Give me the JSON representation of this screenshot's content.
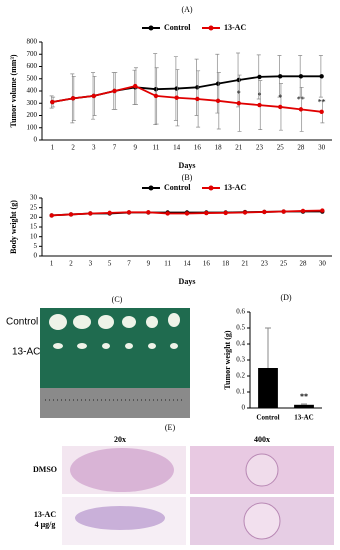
{
  "chart_data": [
    {
      "type": "line",
      "title": "(A)",
      "x_label": "Days",
      "y_label": "Tumor volume (mm³)",
      "legend": "top",
      "categories": [
        "1",
        "2",
        "3",
        "7",
        "9",
        "11",
        "14",
        "16",
        "18",
        "21",
        "23",
        "25",
        "28",
        "30"
      ],
      "series": [
        {
          "name": "Control",
          "color": "#000000",
          "values": [
            310,
            340,
            360,
            400,
            430,
            415,
            420,
            430,
            460,
            490,
            515,
            520,
            520,
            520
          ],
          "errors": [
            50,
            200,
            190,
            150,
            140,
            290,
            260,
            230,
            240,
            220,
            180,
            170,
            170,
            170
          ]
        },
        {
          "name": "13-AC",
          "color": "#e00000",
          "values": [
            310,
            340,
            360,
            400,
            440,
            360,
            345,
            335,
            320,
            300,
            285,
            270,
            250,
            230
          ],
          "errors": [
            40,
            180,
            160,
            150,
            150,
            230,
            230,
            230,
            230,
            230,
            200,
            190,
            180,
            90
          ]
        }
      ],
      "significance": [
        null,
        null,
        null,
        null,
        null,
        null,
        null,
        null,
        null,
        "*",
        "*",
        "*",
        "**",
        "**"
      ],
      "ylim": [
        0,
        800
      ],
      "yticks": [
        0,
        100,
        200,
        300,
        400,
        500,
        600,
        700,
        800
      ]
    },
    {
      "type": "line",
      "title": "(B)",
      "x_label": "Days",
      "y_label": "Body weight (g)",
      "legend": "top",
      "categories": [
        "1",
        "2",
        "3",
        "5",
        "7",
        "9",
        "11",
        "14",
        "16",
        "18",
        "21",
        "23",
        "25",
        "28",
        "30"
      ],
      "series": [
        {
          "name": "Control",
          "color": "#000000",
          "values": [
            21,
            21.5,
            22,
            22,
            22.5,
            22.5,
            22.5,
            22.5,
            22.5,
            22.5,
            22.7,
            22.8,
            23,
            23,
            23
          ]
        },
        {
          "name": "13-AC",
          "color": "#e00000",
          "values": [
            21,
            21.5,
            22,
            22.3,
            22.6,
            22.6,
            22,
            22,
            22.2,
            22.3,
            22.5,
            22.8,
            23,
            23.3,
            23.5
          ]
        }
      ],
      "ylim": [
        0,
        30
      ],
      "yticks": [
        0,
        5,
        10,
        15,
        20,
        25,
        30
      ]
    },
    {
      "type": "bar",
      "title": "(D)",
      "y_label": "Tumor weight (g)",
      "categories": [
        "Control",
        "13-AC"
      ],
      "values": [
        0.25,
        0.02
      ],
      "errors": [
        0.25,
        0.005
      ],
      "color": "#000000",
      "significance": [
        null,
        "**"
      ],
      "ylim": [
        0,
        0.6
      ],
      "yticks": [
        0,
        0.1,
        0.2,
        0.3,
        0.4,
        0.5,
        0.6
      ]
    }
  ],
  "photo": {
    "title": "(C)",
    "rows": [
      "Control",
      "13-AC"
    ]
  },
  "histology": {
    "title": "(E)",
    "columns": [
      "20x",
      "400x"
    ],
    "rows": [
      "DMSO",
      "13-AC"
    ],
    "dose": "4 μg/g"
  }
}
